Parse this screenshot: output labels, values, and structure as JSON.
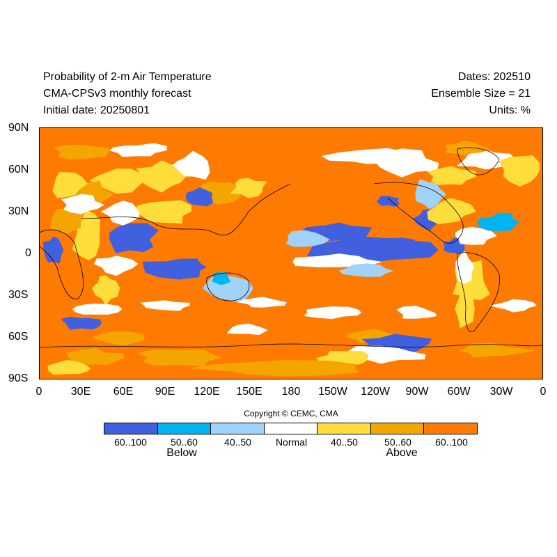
{
  "header": {
    "title": "Probability of 2-m Air Temperature",
    "subtitle": "CMA-CPSv3 monthly forecast",
    "initial_date": "Initial date: 20250801",
    "dates": "Dates: 202510",
    "ensemble": "Ensemble Size = 21",
    "units": "Units: %"
  },
  "axes": {
    "lat_labels": [
      "90N",
      "60N",
      "30N",
      "0",
      "30S",
      "60S",
      "90S"
    ],
    "lon_labels": [
      "0",
      "30E",
      "60E",
      "90E",
      "120E",
      "150E",
      "180",
      "150W",
      "120W",
      "90W",
      "60W",
      "30W",
      "0"
    ]
  },
  "copyright": "Copyright © CEMC, CMA",
  "legend": {
    "categories": [
      {
        "label": "60..100",
        "color": "#4060e0"
      },
      {
        "label": "50..60",
        "color": "#00b4f0"
      },
      {
        "label": "40..50",
        "color": "#a0d2fa"
      },
      {
        "label": "Normal",
        "color": "#ffffff"
      },
      {
        "label": "40..50",
        "color": "#ffde3c"
      },
      {
        "label": "50..60",
        "color": "#f5a500"
      },
      {
        "label": "60..100",
        "color": "#ff7a00"
      }
    ],
    "below_label": "Below",
    "above_label": "Above"
  },
  "map_regions": {
    "colors": {
      "above_strong": "#ff7a00",
      "above_mid": "#f5a500",
      "above_weak": "#ffde3c",
      "normal": "#ffffff",
      "below_weak": "#a0d2fa",
      "below_mid": "#00b4f0",
      "below_strong": "#4060e0",
      "coast": "#000000"
    }
  }
}
